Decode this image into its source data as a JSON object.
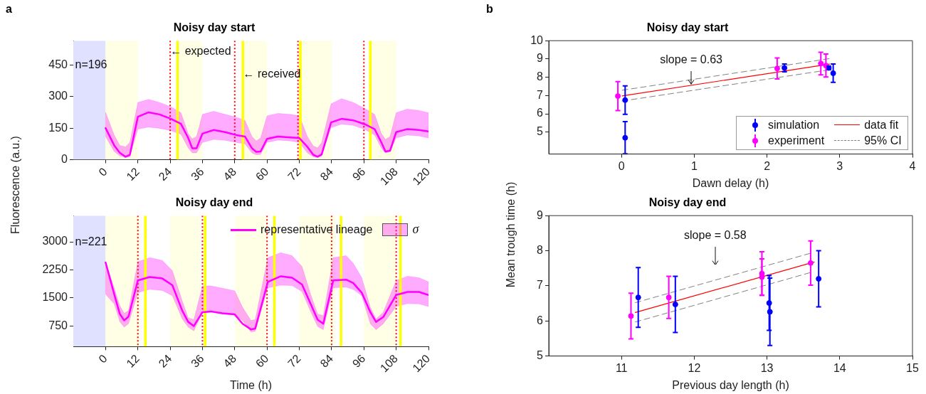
{
  "chart_data": [
    {
      "type": "line",
      "title": "Noisy day start",
      "ylabel": "Fluorescence (a.u.)",
      "xlim": [
        -12,
        120
      ],
      "xticks": [
        0,
        12,
        24,
        36,
        48,
        60,
        72,
        84,
        96,
        108,
        120
      ],
      "ylim": [
        0,
        565
      ],
      "yticks": [
        0,
        150,
        300,
        450
      ],
      "series": [
        {
          "color": "#ff00ff",
          "x": [
            0,
            3.2,
            5.3,
            7.4,
            9,
            12,
            16,
            20,
            24.3,
            28,
            30.7,
            32.2,
            33.8,
            36,
            40.2,
            44.4,
            48.6,
            51.8,
            54.4,
            56,
            57.6,
            60,
            64,
            68.7,
            72,
            75,
            77.2,
            78.8,
            80.3,
            83.8,
            87.7,
            92,
            96.2,
            100,
            102.5,
            104,
            105.7,
            108,
            112,
            116.3,
            120
          ],
          "values": [
            150,
            68,
            32,
            14,
            23,
            204,
            225,
            215,
            194,
            170,
            103,
            54,
            54,
            124,
            141,
            131,
            117,
            110,
            54,
            37,
            39,
            99,
            110,
            106,
            103,
            61,
            23,
            14,
            25,
            177,
            194,
            187,
            169,
            145,
            82,
            39,
            42,
            131,
            145,
            141,
            134
          ],
          "upper": [
            225,
            117,
            68,
            61,
            82,
            272,
            286,
            272,
            251,
            223,
            124,
            99,
            110,
            215,
            230,
            215,
            201,
            187,
            110,
            89,
            103,
            208,
            220,
            215,
            208,
            110,
            65,
            56,
            82,
            265,
            290,
            272,
            244,
            215,
            124,
            96,
            110,
            223,
            240,
            234,
            223
          ],
          "lower": [
            110,
            39,
            18,
            11,
            14,
            145,
            155,
            149,
            138,
            121,
            56,
            32,
            32,
            82,
            96,
            92,
            82,
            75,
            32,
            23,
            25,
            82,
            93,
            89,
            82,
            32,
            14,
            11,
            18,
            152,
            169,
            163,
            145,
            117,
            54,
            32,
            39,
            103,
            117,
            113,
            103
          ]
        }
      ],
      "bands": [
        {
          "axis": "x",
          "from": -12,
          "to": 0,
          "color": "#e0e0ff"
        },
        {
          "axis": "x",
          "from": 0,
          "to": 12,
          "color": "#ffffe6"
        },
        {
          "axis": "x",
          "from": 26.7,
          "to": 36,
          "color": "#ffffe6"
        },
        {
          "axis": "x",
          "from": 51,
          "to": 60,
          "color": "#ffffe6"
        },
        {
          "axis": "x",
          "from": 72,
          "to": 84,
          "color": "#ffffe6"
        },
        {
          "axis": "x",
          "from": 98.4,
          "to": 108,
          "color": "#ffffe6"
        }
      ],
      "ref_lines": [
        {
          "axis": "x",
          "value": 24,
          "color": "#ff0000",
          "line_style": "dotted"
        },
        {
          "axis": "x",
          "value": 48,
          "color": "#ff0000",
          "line_style": "dotted"
        },
        {
          "axis": "x",
          "value": 71.5,
          "color": "#ff0000",
          "line_style": "dotted"
        },
        {
          "axis": "x",
          "value": 96,
          "color": "#ff0000",
          "line_style": "dotted"
        },
        {
          "axis": "x",
          "value": 26.7,
          "color": "#ffff00",
          "line_style": "solid"
        },
        {
          "axis": "x",
          "value": 51,
          "color": "#ffff00",
          "line_style": "solid"
        },
        {
          "axis": "x",
          "value": 72.4,
          "color": "#ffff00",
          "line_style": "solid"
        },
        {
          "axis": "x",
          "value": 98.4,
          "color": "#ffff00",
          "line_style": "solid"
        }
      ],
      "annotations": [
        "a",
        "n=196",
        "← expected",
        "← received"
      ]
    },
    {
      "type": "line",
      "title": "Noisy day end",
      "xlabel": "Time (h)",
      "xlim": [
        -12,
        120
      ],
      "xticks": [
        0,
        12,
        24,
        36,
        48,
        60,
        72,
        84,
        96,
        108,
        120
      ],
      "ylim": [
        200,
        3700
      ],
      "yticks": [
        750,
        1500,
        2250,
        3000
      ],
      "legend": "top right",
      "series": [
        {
          "name": "representative lineage",
          "color": "#ff00ff",
          "x": [
            0,
            3.2,
            5.3,
            6.9,
            8.5,
            12,
            16.4,
            21.1,
            24.8,
            28.5,
            30.7,
            32.8,
            36,
            39.1,
            43.4,
            48,
            50.9,
            54,
            55.6,
            60.3,
            65.1,
            69.3,
            73,
            76.2,
            78.8,
            80.9,
            84.6,
            89.4,
            92,
            95.2,
            98.4,
            100.5,
            103.2,
            108,
            112.2,
            116.5,
            120
          ],
          "values": [
            2450,
            1600,
            1070,
            900,
            1000,
            1970,
            2060,
            2020,
            1840,
            1160,
            860,
            750,
            1120,
            1140,
            1090,
            1060,
            810,
            660,
            680,
            1930,
            2080,
            2040,
            1860,
            1340,
            920,
            810,
            1970,
            1990,
            1900,
            1640,
            1120,
            860,
            990,
            1580,
            1660,
            1660,
            1580
          ],
          "upper": [
            2450,
            1770,
            1290,
            1090,
            1160,
            2470,
            2580,
            2500,
            2230,
            1420,
            970,
            920,
            1820,
            1820,
            1760,
            1690,
            1250,
            900,
            920,
            2580,
            2710,
            2630,
            2340,
            1600,
            1070,
            1030,
            2580,
            2630,
            2430,
            2040,
            1250,
            940,
            1120,
            1970,
            2080,
            2040,
            1930
          ],
          "lower": [
            1600,
            1340,
            860,
            720,
            810,
            1640,
            1730,
            1700,
            1560,
            940,
            720,
            620,
            1100,
            1120,
            1070,
            1040,
            900,
            590,
            610,
            1770,
            1840,
            1830,
            1670,
            1140,
            740,
            650,
            1770,
            1790,
            1730,
            1560,
            810,
            650,
            810,
            1270,
            1350,
            1340,
            1270
          ]
        }
      ],
      "bands": [
        {
          "axis": "x",
          "from": -12,
          "to": 0,
          "color": "#e0e0ff"
        },
        {
          "axis": "x",
          "from": 0,
          "to": 12.7,
          "color": "#ffffe6"
        },
        {
          "axis": "x",
          "from": 24,
          "to": 35.2,
          "color": "#ffffe6"
        },
        {
          "axis": "x",
          "from": 48,
          "to": 60,
          "color": "#ffffe6"
        },
        {
          "axis": "x",
          "from": 72,
          "to": 85.4,
          "color": "#ffffe6"
        },
        {
          "axis": "x",
          "from": 96,
          "to": 108,
          "color": "#ffffe6"
        }
      ],
      "ref_lines": [
        {
          "axis": "x",
          "value": 12,
          "color": "#ff0000",
          "line_style": "dotted"
        },
        {
          "axis": "x",
          "value": 36,
          "color": "#ff0000",
          "line_style": "dotted"
        },
        {
          "axis": "x",
          "value": 60,
          "color": "#ff0000",
          "line_style": "dotted"
        },
        {
          "axis": "x",
          "value": 84,
          "color": "#ff0000",
          "line_style": "dotted"
        },
        {
          "axis": "x",
          "value": 108,
          "color": "#ff0000",
          "line_style": "dotted"
        },
        {
          "axis": "x",
          "value": 14.8,
          "color": "#ffff00",
          "line_style": "solid"
        },
        {
          "axis": "x",
          "value": 37,
          "color": "#ffff00",
          "line_style": "solid"
        },
        {
          "axis": "x",
          "value": 62.7,
          "color": "#ffff00",
          "line_style": "solid"
        },
        {
          "axis": "x",
          "value": 87.5,
          "color": "#ffff00",
          "line_style": "solid"
        },
        {
          "axis": "x",
          "value": 109.6,
          "color": "#ffff00",
          "line_style": "solid"
        }
      ],
      "annotations": [
        "n=221",
        "σ"
      ]
    },
    {
      "type": "scatter",
      "title": "Noisy day start",
      "xlabel": "Dawn delay (h)",
      "xlim": [
        -1,
        4
      ],
      "xticks": [
        0,
        1,
        2,
        3,
        4
      ],
      "ylim": [
        3.8,
        10
      ],
      "yticks": [
        5,
        6,
        7,
        8,
        9,
        10
      ],
      "legend": "bottom right",
      "series": [
        {
          "name": "simulation",
          "marker": "circle",
          "color": "#0000ff",
          "x": [
            0.05,
            0.05,
            2.24,
            2.85,
            2.91
          ],
          "values": [
            6.75,
            4.69,
            8.51,
            8.51,
            8.22
          ],
          "errors": [
            0.78,
            0.88,
            0.21,
            0.1,
            0.5
          ]
        },
        {
          "name": "experiment",
          "marker": "circle",
          "color": "#ff00ff",
          "x": [
            -0.05,
            2.14,
            2.74,
            2.81
          ],
          "values": [
            6.97,
            8.48,
            8.75,
            8.64
          ],
          "errors": [
            0.79,
            0.57,
            0.62,
            0.63
          ]
        },
        {
          "name": "data fit",
          "type": "line",
          "color": "#ff0000",
          "x": [
            0.01,
            2.86
          ],
          "values": [
            6.98,
            8.72
          ]
        },
        {
          "name": "95% CI",
          "type": "line",
          "color": "#808080",
          "line_style": "dashed",
          "x": [
            0.01,
            2.86
          ],
          "values": [
            7.29,
            9.02
          ]
        },
        {
          "type": "line",
          "color": "#808080",
          "line_style": "dashed",
          "x": [
            0.01,
            2.86
          ],
          "values": [
            6.7,
            8.41
          ]
        }
      ],
      "annotations": [
        "b",
        "slope = 0.63"
      ]
    },
    {
      "type": "scatter",
      "title": "Noisy day end",
      "xlabel": "Previous day length (h)",
      "ylabel": "Mean trough time (h)",
      "xlim": [
        10,
        15
      ],
      "xticks": [
        11,
        12,
        13,
        14,
        15
      ],
      "ylim": [
        5,
        9
      ],
      "yticks": [
        5,
        6,
        7,
        8,
        9
      ],
      "series": [
        {
          "marker": "circle",
          "color": "#0000ff",
          "x": [
            11.23,
            11.74,
            13.03,
            13.04,
            13.71
          ],
          "values": [
            6.67,
            6.47,
            6.51,
            6.26,
            7.2
          ],
          "errors": [
            0.85,
            0.8,
            0.78,
            0.96,
            0.8
          ]
        },
        {
          "marker": "circle",
          "color": "#ff00ff",
          "x": [
            11.13,
            11.65,
            12.93,
            12.93,
            13.6
          ],
          "values": [
            6.14,
            6.67,
            7.35,
            7.25,
            7.65
          ],
          "errors": [
            0.65,
            0.6,
            0.62,
            0.52,
            0.63
          ]
        },
        {
          "type": "line",
          "color": "#ff0000",
          "x": [
            11.19,
            13.65
          ],
          "values": [
            6.24,
            7.68
          ]
        },
        {
          "type": "line",
          "color": "#808080",
          "line_style": "dashed",
          "x": [
            11.19,
            13.6
          ],
          "values": [
            6.52,
            7.93
          ]
        },
        {
          "type": "line",
          "color": "#808080",
          "line_style": "dashed",
          "x": [
            11.19,
            13.6
          ],
          "values": [
            5.97,
            7.38
          ]
        }
      ],
      "annotations": [
        "slope = 0.58"
      ]
    }
  ]
}
